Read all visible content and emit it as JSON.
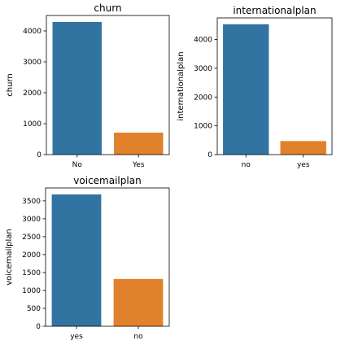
{
  "chart_data": [
    {
      "type": "bar",
      "title": "churn",
      "xlabel": "",
      "ylabel": "churn",
      "categories": [
        "No",
        "Yes"
      ],
      "values": [
        4290,
        710
      ],
      "ylim": [
        0,
        4500
      ],
      "yticks": [
        0,
        1000,
        2000,
        3000,
        4000
      ],
      "colors": [
        "#3274a1",
        "#e1812c"
      ],
      "grid": false
    },
    {
      "type": "bar",
      "title": "internationalplan",
      "xlabel": "",
      "ylabel": "internationalplan",
      "categories": [
        "no",
        "yes"
      ],
      "values": [
        4530,
        470
      ],
      "ylim": [
        0,
        4750
      ],
      "yticks": [
        0,
        1000,
        2000,
        3000,
        4000
      ],
      "colors": [
        "#3274a1",
        "#e1812c"
      ],
      "grid": false
    },
    {
      "type": "bar",
      "title": "voicemailplan",
      "xlabel": "",
      "ylabel": "voicemailplan",
      "categories": [
        "yes",
        "no"
      ],
      "values": [
        3680,
        1320
      ],
      "ylim": [
        0,
        3860
      ],
      "yticks": [
        0,
        500,
        1000,
        1500,
        2000,
        2500,
        3000,
        3500
      ],
      "colors": [
        "#3274a1",
        "#e1812c"
      ],
      "grid": false
    }
  ]
}
